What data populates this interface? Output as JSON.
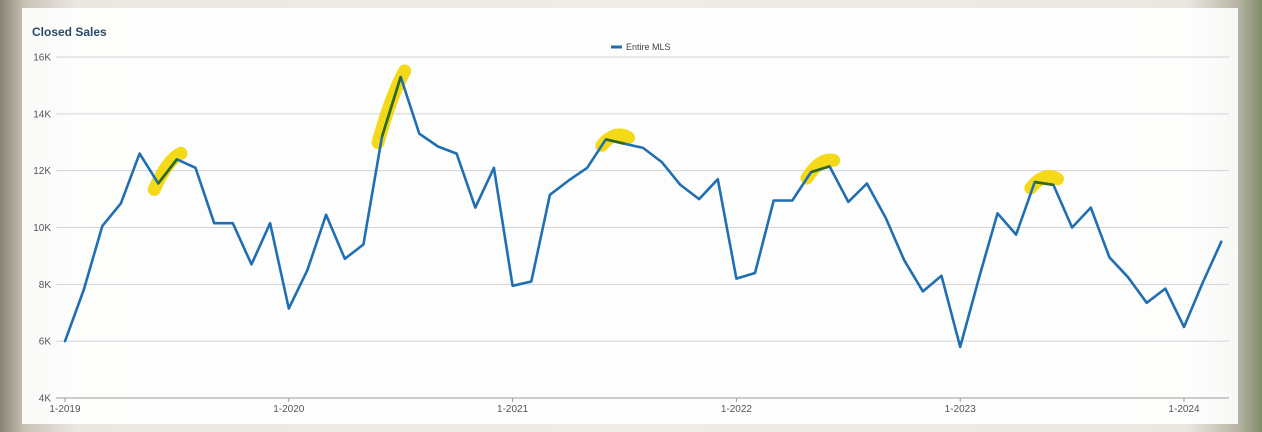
{
  "chart_data": {
    "type": "line",
    "title": "Closed Sales",
    "xlabel": "",
    "ylabel": "",
    "ylim": [
      4000,
      16000
    ],
    "y_ticks": [
      4000,
      6000,
      8000,
      10000,
      12000,
      14000,
      16000
    ],
    "y_tick_labels": [
      "4K",
      "6K",
      "8K",
      "10K",
      "12K",
      "14K",
      "16K"
    ],
    "x_start": "2019-01",
    "x_ticks": [
      {
        "month_index": 0,
        "label": "1-2019"
      },
      {
        "month_index": 12,
        "label": "1-2020"
      },
      {
        "month_index": 24,
        "label": "1-2021"
      },
      {
        "month_index": 36,
        "label": "1-2022"
      },
      {
        "month_index": 48,
        "label": "1-2023"
      },
      {
        "month_index": 60,
        "label": "1-2024"
      }
    ],
    "legend_position": "top-center",
    "grid": true,
    "colors": {
      "line": "#1f6fb2",
      "highlight": "#f3d500",
      "highlight_line": "#2f6a1e"
    },
    "series": [
      {
        "name": "Entire MLS",
        "values": [
          6000,
          7800,
          10050,
          10850,
          12600,
          11550,
          12400,
          12100,
          10150,
          10150,
          8700,
          10150,
          7150,
          8500,
          10450,
          8900,
          9400,
          13200,
          15300,
          13300,
          12850,
          12600,
          10700,
          12100,
          7950,
          8100,
          11150,
          11650,
          12100,
          13100,
          12950,
          12800,
          12300,
          11500,
          11000,
          11700,
          8200,
          8400,
          10950,
          10950,
          11950,
          12150,
          10900,
          11550,
          10350,
          8850,
          7750,
          8300,
          5800,
          8200,
          10500,
          9750,
          11600,
          11500,
          10000,
          10700,
          8950,
          8250,
          7350,
          7850,
          6500,
          8050,
          9500
        ]
      }
    ],
    "highlights": [
      {
        "from_index": 5,
        "to_index": 6
      },
      {
        "from_index": 17,
        "to_index": 18
      },
      {
        "from_index": 29,
        "to_index": 30
      },
      {
        "from_index": 40,
        "to_index": 41
      },
      {
        "from_index": 52,
        "to_index": 53
      }
    ]
  }
}
